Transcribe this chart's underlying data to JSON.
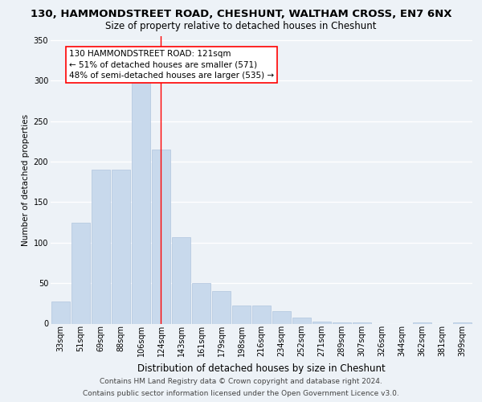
{
  "title": "130, HAMMONDSTREET ROAD, CHESHUNT, WALTHAM CROSS, EN7 6NX",
  "subtitle": "Size of property relative to detached houses in Cheshunt",
  "xlabel": "Distribution of detached houses by size in Cheshunt",
  "ylabel": "Number of detached properties",
  "bar_color": "#c8d9ec",
  "bar_edge_color": "#b0c4de",
  "categories": [
    "33sqm",
    "51sqm",
    "69sqm",
    "88sqm",
    "106sqm",
    "124sqm",
    "143sqm",
    "161sqm",
    "179sqm",
    "198sqm",
    "216sqm",
    "234sqm",
    "252sqm",
    "271sqm",
    "289sqm",
    "307sqm",
    "326sqm",
    "344sqm",
    "362sqm",
    "381sqm",
    "399sqm"
  ],
  "values": [
    27,
    125,
    190,
    190,
    322,
    215,
    107,
    50,
    40,
    22,
    22,
    15,
    7,
    2,
    1,
    1,
    0,
    0,
    1,
    0,
    1
  ],
  "ylim": [
    0,
    355
  ],
  "yticks": [
    0,
    50,
    100,
    150,
    200,
    250,
    300,
    350
  ],
  "property_line_x": 4.97,
  "annotation_line1": "130 HAMMONDSTREET ROAD: 121sqm",
  "annotation_line2": "← 51% of detached houses are smaller (571)",
  "annotation_line3": "48% of semi-detached houses are larger (535) →",
  "footer_line1": "Contains HM Land Registry data © Crown copyright and database right 2024.",
  "footer_line2": "Contains public sector information licensed under the Open Government Licence v3.0.",
  "background_color": "#edf2f7",
  "grid_color": "#ffffff",
  "title_fontsize": 9.5,
  "subtitle_fontsize": 8.5,
  "xlabel_fontsize": 8.5,
  "ylabel_fontsize": 7.5,
  "tick_fontsize": 7,
  "annotation_fontsize": 7.5,
  "footer_fontsize": 6.5
}
